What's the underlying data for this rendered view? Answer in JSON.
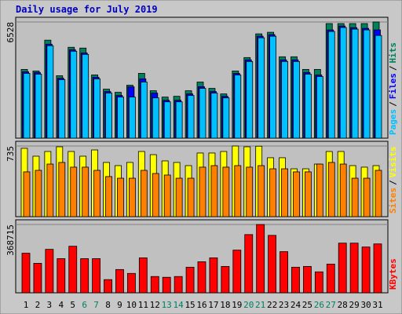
{
  "chart_data": {
    "type": "bar",
    "title": "Daily usage for July 2019",
    "categories": [
      "1",
      "2",
      "3",
      "4",
      "5",
      "6",
      "7",
      "8",
      "9",
      "10",
      "11",
      "12",
      "13",
      "14",
      "15",
      "16",
      "17",
      "18",
      "19",
      "20",
      "21",
      "22",
      "23",
      "24",
      "25",
      "26",
      "27",
      "28",
      "29",
      "30",
      "31"
    ],
    "category_colors": [
      "#000000",
      "#000000",
      "#000000",
      "#000000",
      "#000000",
      "#008060",
      "#008060",
      "#000000",
      "#000000",
      "#000000",
      "#000000",
      "#000000",
      "#008060",
      "#008060",
      "#000000",
      "#000000",
      "#000000",
      "#000000",
      "#000000",
      "#008060",
      "#008060",
      "#000000",
      "#000000",
      "#000000",
      "#000000",
      "#008060",
      "#008060",
      "#000000",
      "#000000",
      "#000000",
      "#000000"
    ],
    "legend_separator": "/",
    "panels": [
      {
        "ylim": [
          0,
          6528
        ],
        "yticks": [
          6528
        ],
        "series": [
          {
            "name": "Hits",
            "color": "#00805c",
            "values": [
              3863,
              3774,
              5506,
              3508,
              5106,
              5062,
              3552,
              2753,
              2575,
              2975,
              3641,
              2664,
              2309,
              2353,
              2664,
              3152,
              2797,
              2486,
              3774,
              4529,
              5861,
              5950,
              4573,
              4573,
              3863,
              3863,
              6438,
              6438,
              6438,
              6438,
              6528
            ]
          },
          {
            "name": "Files",
            "color": "#0000ff",
            "values": [
              3730,
              3690,
              5280,
              3370,
              4970,
              4790,
              3420,
              2620,
              2400,
              2886,
              3330,
              2531,
              2130,
              2130,
              2490,
              2890,
              2620,
              2350,
              3640,
              4400,
              5730,
              5820,
              4400,
              4400,
              3690,
              3550,
              6080,
              6300,
              6210,
              6170,
              6083
            ]
          },
          {
            "name": "Pages",
            "color": "#00c0ff",
            "values": [
              3641,
              3596,
              5195,
              3286,
              4884,
              4706,
              3330,
              2531,
              2309,
              2309,
              3152,
              2264,
              2042,
              2042,
              2398,
              2797,
              2531,
              2264,
              3552,
              4307,
              5639,
              5728,
              4307,
              4307,
              3596,
              3463,
              5994,
              6216,
              6127,
              6083,
              5772
            ]
          }
        ]
      },
      {
        "ylim": [
          0,
          735
        ],
        "yticks": [
          735
        ],
        "series": [
          {
            "name": "Visits",
            "color": "#ffff00",
            "values": [
              711,
              629,
              678,
              727,
              678,
              629,
              694,
              564,
              531,
              564,
              678,
              645,
              580,
              564,
              531,
              662,
              662,
              678,
              735,
              727,
              733,
              613,
              613,
              498,
              498,
              547,
              678,
              678,
              531,
              515,
              531
            ]
          },
          {
            "name": "Sites",
            "color": "#ff8000",
            "values": [
              466,
              482,
              547,
              564,
              515,
              515,
              482,
              417,
              400,
              400,
              482,
              449,
              433,
              400,
              400,
              515,
              531,
              515,
              531,
              515,
              531,
              498,
              498,
              466,
              466,
              547,
              564,
              547,
              400,
              400,
              482
            ]
          }
        ]
      },
      {
        "ylim": [
          0,
          368715
        ],
        "yticks": [
          368715
        ],
        "series": [
          {
            "name": "KBytes",
            "color": "#ff0000",
            "values": [
              213690,
              159220,
              234640,
              184360,
              251400,
              184360,
              184360,
              71230,
              125700,
              104750,
              188550,
              87990,
              83800,
              87990,
              138270,
              167600,
              188550,
              142460,
              230450,
              314250,
              368715,
              310060,
              222070,
              138270,
              142460,
              113130,
              155030,
              268160,
              268160,
              247210,
              263970
            ]
          }
        ]
      }
    ]
  }
}
